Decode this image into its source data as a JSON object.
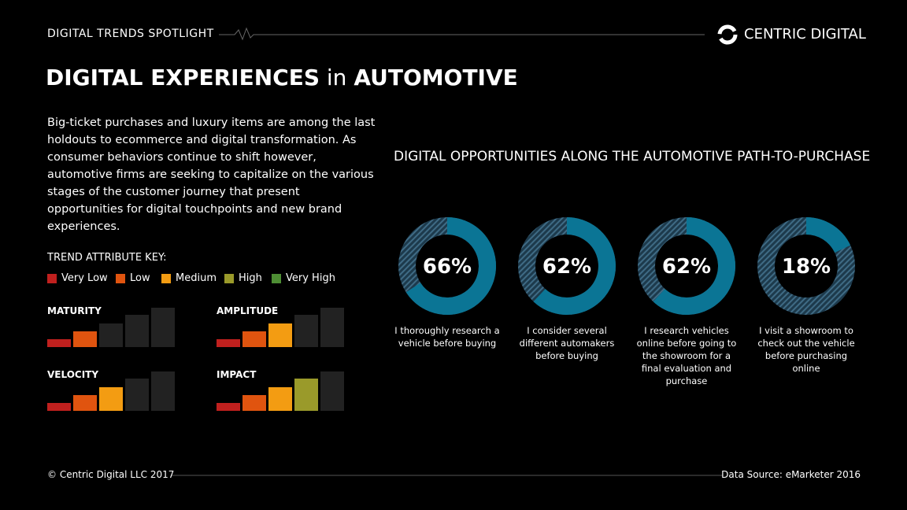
{
  "header": {
    "label": "DIGITAL TRENDS SPOTLIGHT",
    "brand": "CENTRIC DIGITAL"
  },
  "title_parts": [
    "DIGITAL EXPERIENCES",
    "in",
    "AUTOMOTIVE"
  ],
  "intro": "Big-ticket purchases and luxury items are among the last holdouts to ecommerce and digital transformation. As consumer behaviors continue to shift however, automotive firms are seeking to capitalize on the various stages of the customer journey that present opportunities for digital touchpoints and new brand experiences.",
  "trend_key": {
    "title": "TREND ATTRIBUTE KEY:",
    "levels": [
      {
        "name": "Very Low",
        "color": "#c0201e"
      },
      {
        "name": "Low",
        "color": "#e0540f"
      },
      {
        "name": "Medium",
        "color": "#f39c12"
      },
      {
        "name": "High",
        "color": "#9a9a2a"
      },
      {
        "name": "Very High",
        "color": "#4e8e34"
      }
    ]
  },
  "attributes": [
    {
      "name": "MATURITY",
      "level": 2
    },
    {
      "name": "AMPLITUDE",
      "level": 3
    },
    {
      "name": "VELOCITY",
      "level": 3
    },
    {
      "name": "IMPACT",
      "level": 4
    }
  ],
  "section_title": "DIGITAL OPPORTUNITIES ALONG THE AUTOMOTIVE PATH-TO-PURCHASE",
  "chart_data": [
    {
      "type": "donut",
      "values": [
        66
      ],
      "value_labels": [
        "66%"
      ],
      "color": "#0b7595",
      "caption": "I thoroughly research a vehicle before buying"
    },
    {
      "type": "donut",
      "values": [
        62
      ],
      "value_labels": [
        "62%"
      ],
      "color": "#0b7595",
      "caption": "I consider several different automakers before buying"
    },
    {
      "type": "donut",
      "values": [
        62
      ],
      "value_labels": [
        "62%"
      ],
      "color": "#0b7595",
      "caption": "I research vehicles online before going to the showroom for a final evaluation and purchase"
    },
    {
      "type": "donut",
      "values": [
        18
      ],
      "value_labels": [
        "18%"
      ],
      "color": "#0b7595",
      "caption": "I visit a showroom to check out the vehicle before purchasing online"
    }
  ],
  "footer": {
    "copyright": "© Centric Digital LLC 2017",
    "source": "Data Source: eMarketer 2016"
  }
}
